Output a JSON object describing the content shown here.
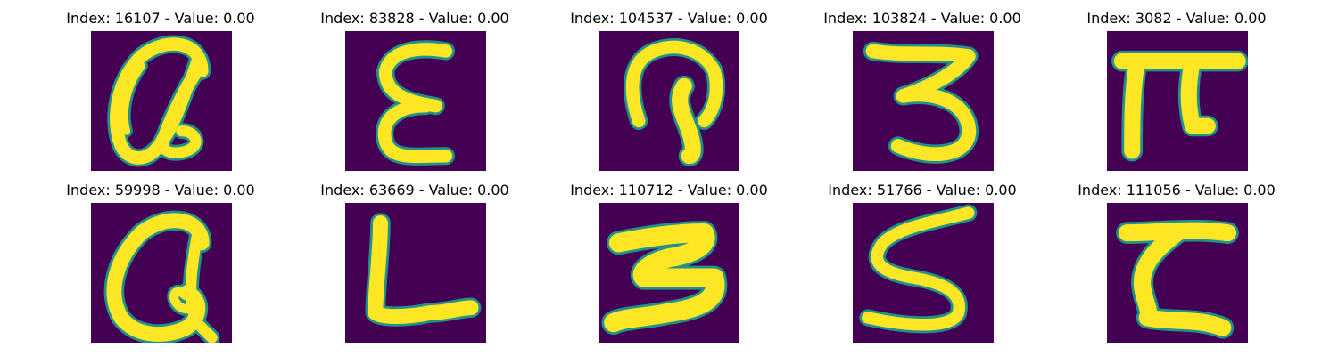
{
  "colors": {
    "background": "#440154",
    "edge": "#21918c",
    "stroke": "#fde725"
  },
  "panels": [
    {
      "title": "Index: 16107 - Value: 0.00",
      "glyph": "handwritten-character"
    },
    {
      "title": "Index: 83828 - Value: 0.00",
      "glyph": "handwritten-character"
    },
    {
      "title": "Index: 104537 - Value: 0.00",
      "glyph": "handwritten-character"
    },
    {
      "title": "Index: 103824 - Value: 0.00",
      "glyph": "handwritten-character"
    },
    {
      "title": "Index: 3082 - Value: 0.00",
      "glyph": "handwritten-character"
    },
    {
      "title": "Index: 59998 - Value: 0.00",
      "glyph": "handwritten-character"
    },
    {
      "title": "Index: 63669 - Value: 0.00",
      "glyph": "handwritten-character"
    },
    {
      "title": "Index: 110712 - Value: 0.00",
      "glyph": "handwritten-character"
    },
    {
      "title": "Index: 51766 - Value: 0.00",
      "glyph": "handwritten-character"
    },
    {
      "title": "Index: 111056 - Value: 0.00",
      "glyph": "handwritten-character"
    }
  ]
}
